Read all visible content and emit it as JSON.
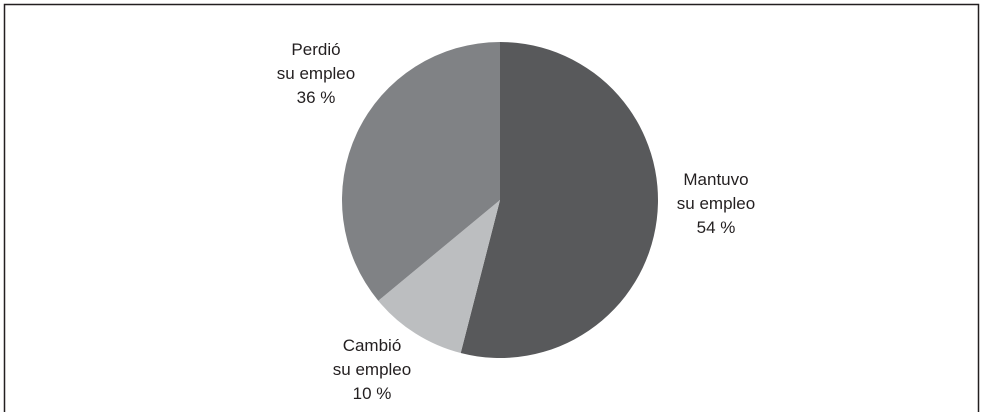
{
  "chart_data": {
    "type": "pie",
    "categories": [
      "Mantuvo\nsu empleo",
      "Cambió\nsu empleo",
      "Perdió\nsu empleo"
    ],
    "values": [
      54,
      10,
      36
    ],
    "value_labels": [
      "54 %",
      "10 %",
      "36 %"
    ],
    "colors": [
      "#58595b",
      "#bcbec0",
      "#808285"
    ]
  }
}
